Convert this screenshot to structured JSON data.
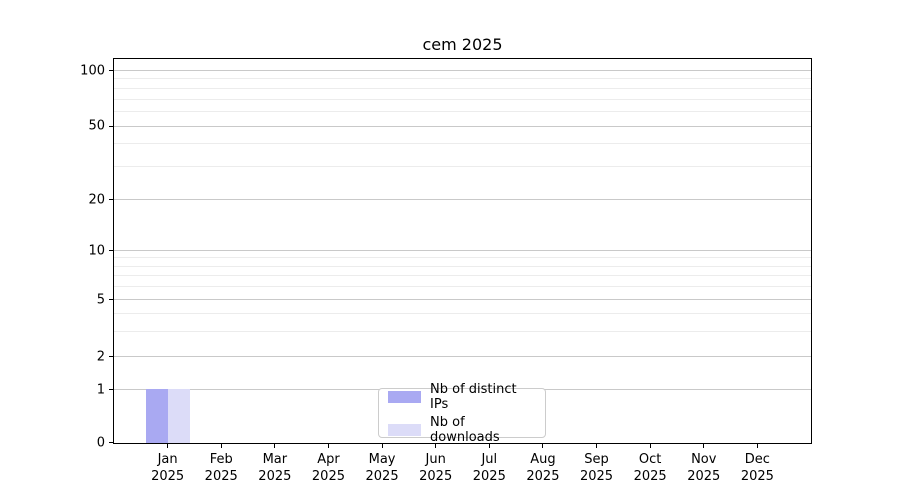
{
  "title": "cem 2025",
  "legend": {
    "position": "bottom-center",
    "items": [
      {
        "label": "Nb of distinct IPs",
        "color": "#a9a9f2"
      },
      {
        "label": "Nb of downloads",
        "color": "#dcdcf8"
      }
    ]
  },
  "chart_data": {
    "type": "bar",
    "title": "cem 2025",
    "xlabel": "",
    "ylabel": "",
    "categories": [
      "Jan 2025",
      "Feb 2025",
      "Mar 2025",
      "Apr 2025",
      "May 2025",
      "Jun 2025",
      "Jul 2025",
      "Aug 2025",
      "Sep 2025",
      "Oct 2025",
      "Nov 2025",
      "Dec 2025"
    ],
    "series": [
      {
        "name": "Nb of distinct IPs",
        "color": "#a9a9f2",
        "values": [
          1,
          0,
          0,
          0,
          0,
          0,
          0,
          0,
          0,
          0,
          0,
          0
        ]
      },
      {
        "name": "Nb of downloads",
        "color": "#dcdcf8",
        "values": [
          1,
          0,
          0,
          0,
          0,
          0,
          0,
          0,
          0,
          0,
          0,
          0
        ]
      }
    ],
    "yscale": "log-like (linear segment below 1)",
    "ylim": [
      0,
      100
    ],
    "y_ticks": [
      0,
      1,
      2,
      5,
      10,
      20,
      50,
      100
    ],
    "y_minor_ticks": [
      3,
      4,
      6,
      7,
      8,
      9,
      30,
      40,
      60,
      70,
      80,
      90
    ],
    "grid": "on",
    "legend_position": "bottom-center"
  }
}
